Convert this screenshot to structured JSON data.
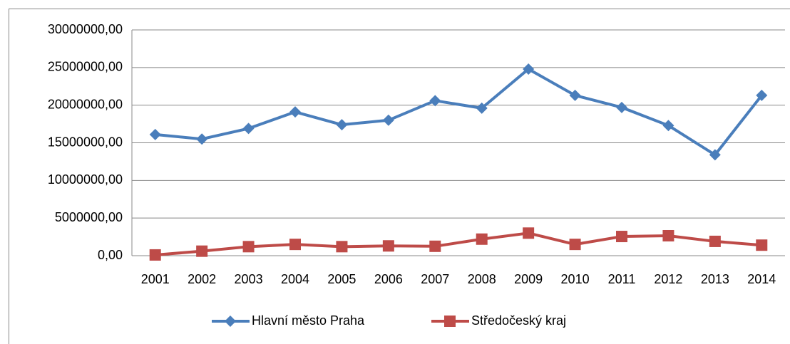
{
  "chart_data": {
    "type": "line",
    "categories": [
      "2001",
      "2002",
      "2003",
      "2004",
      "2005",
      "2006",
      "2007",
      "2008",
      "2009",
      "2010",
      "2011",
      "2012",
      "2013",
      "2014"
    ],
    "series": [
      {
        "name": "Hlavní město Praha",
        "color": "#4a7ebb",
        "marker": "diamond",
        "values": [
          16100000,
          15500000,
          16900000,
          19100000,
          17400000,
          18000000,
          20600000,
          19600000,
          24800000,
          21300000,
          19700000,
          17300000,
          13400000,
          21300000
        ]
      },
      {
        "name": "Středočeský kraj",
        "color": "#be4b48",
        "marker": "square",
        "values": [
          100000,
          600000,
          1200000,
          1500000,
          1200000,
          1300000,
          1250000,
          2200000,
          3000000,
          1500000,
          2550000,
          2650000,
          1900000,
          1400000
        ]
      }
    ],
    "ylim": [
      0,
      30000000
    ],
    "yticks": [
      {
        "value": 0,
        "label": "0,00"
      },
      {
        "value": 5000000,
        "label": "5000000,00"
      },
      {
        "value": 10000000,
        "label": "10000000,00"
      },
      {
        "value": 15000000,
        "label": "15000000,00"
      },
      {
        "value": 20000000,
        "label": "20000000,00"
      },
      {
        "value": 25000000,
        "label": "25000000,00"
      },
      {
        "value": 30000000,
        "label": "30000000,00"
      }
    ],
    "grid": true,
    "legend": "bottom"
  }
}
